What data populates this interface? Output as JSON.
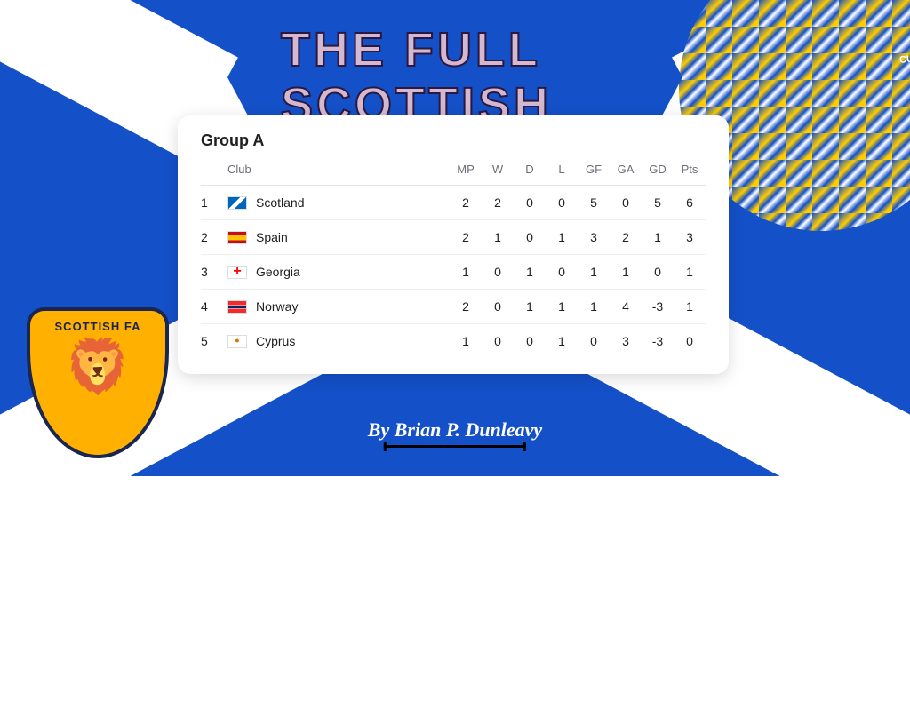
{
  "colors": {
    "saltire_blue": "#1450c8",
    "white": "#ffffff",
    "title_fill": "#d4b8d0",
    "badge_yellow": "#ffb000",
    "badge_navy": "#1a2550",
    "text_dark": "#202020",
    "text_muted": "#6b6f76"
  },
  "title": "THE FULL SCOTTISH",
  "byline": "By Brian P. Dunleavy",
  "badge": {
    "text": "SCOTTISH FA"
  },
  "crowd": {
    "visible_text": "CURRIE"
  },
  "table": {
    "title": "Group A",
    "columns": {
      "club": "Club",
      "mp": "MP",
      "w": "W",
      "d": "D",
      "l": "L",
      "gf": "GF",
      "ga": "GA",
      "gd": "GD",
      "pts": "Pts"
    },
    "rows": [
      {
        "pos": "1",
        "flag": "scotland",
        "team": "Scotland",
        "mp": "2",
        "w": "2",
        "d": "0",
        "l": "0",
        "gf": "5",
        "ga": "0",
        "gd": "5",
        "pts": "6"
      },
      {
        "pos": "2",
        "flag": "spain",
        "team": "Spain",
        "mp": "2",
        "w": "1",
        "d": "0",
        "l": "1",
        "gf": "3",
        "ga": "2",
        "gd": "1",
        "pts": "3"
      },
      {
        "pos": "3",
        "flag": "georgia",
        "team": "Georgia",
        "mp": "1",
        "w": "0",
        "d": "1",
        "l": "0",
        "gf": "1",
        "ga": "1",
        "gd": "0",
        "pts": "1"
      },
      {
        "pos": "4",
        "flag": "norway",
        "team": "Norway",
        "mp": "2",
        "w": "0",
        "d": "1",
        "l": "1",
        "gf": "1",
        "ga": "4",
        "gd": "-3",
        "pts": "1"
      },
      {
        "pos": "5",
        "flag": "cyprus",
        "team": "Cyprus",
        "mp": "1",
        "w": "0",
        "d": "0",
        "l": "1",
        "gf": "0",
        "ga": "3",
        "gd": "-3",
        "pts": "0"
      }
    ]
  }
}
